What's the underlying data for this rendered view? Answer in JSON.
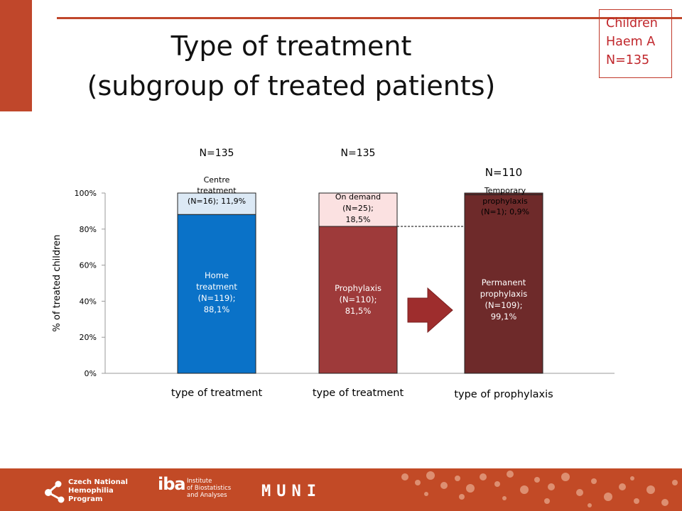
{
  "slide": {
    "title_line1": "Type of treatment",
    "title_line2": "(subgroup of treated patients)",
    "badge": {
      "line1": "Children",
      "line2": "Haem A",
      "line3": "N=135"
    }
  },
  "colors": {
    "accent": "#c0472b",
    "home": "#0a72c8",
    "home_light": "#dce9f5",
    "prophylaxis": "#9e3a3a",
    "on_demand": "#fbe1e1",
    "permanent": "#6e2a2a",
    "arrow": "#9e2d2d"
  },
  "chart_data": {
    "type": "bar",
    "stacked": true,
    "ylabel": "% of treated children",
    "ylim": [
      0,
      100
    ],
    "yticks": [
      "0%",
      "20%",
      "40%",
      "60%",
      "80%",
      "100%"
    ],
    "bars": [
      {
        "category": "type of treatment",
        "n_label": "N=135",
        "segments": [
          {
            "label": "Home treatment (N=119); 88,1%",
            "value": 88.1,
            "color": "#0a72c8"
          },
          {
            "label": "Centre treatment (N=16); 11,9%",
            "value": 11.9,
            "color": "#dce9f5"
          }
        ]
      },
      {
        "category": "type of treatment",
        "n_label": "N=135",
        "segments": [
          {
            "label": "Prophylaxis (N=110); 81,5%",
            "value": 81.5,
            "color": "#9e3a3a"
          },
          {
            "label": "On demand (N=25); 18,5%",
            "value": 18.5,
            "color": "#fbe1e1"
          }
        ]
      },
      {
        "category": "type of prophylaxis",
        "n_label": "N=110",
        "segments": [
          {
            "label": "Permanent prophylaxis (N=109); 99,1%",
            "value": 99.1,
            "color": "#6e2a2a"
          },
          {
            "label": "Temporary prophylaxis (N=1); 0,9%",
            "value": 0.9,
            "color": "#6e2a2a"
          }
        ]
      }
    ],
    "segment_text": [
      [
        "Home",
        "treatment",
        "(N=119);",
        "88,1%"
      ],
      [
        "Centre",
        "treatment",
        "(N=16); 11,9%"
      ],
      [
        "Prophylaxis",
        "(N=110);",
        "81,5%"
      ],
      [
        "On demand",
        "(N=25);",
        "18,5%"
      ],
      [
        "Permanent",
        "prophylaxis",
        "(N=109);",
        "99,1%"
      ],
      [
        "Temporary",
        "prophylaxis",
        "(N=1); 0,9%"
      ]
    ]
  },
  "footer": {
    "cnhp": [
      "Czech National",
      "Hemophilia",
      "Program"
    ],
    "iba_mark": "iba",
    "iba": [
      "Institute",
      "of Biostatistics",
      "and Analyses"
    ],
    "muni": "MUNI"
  }
}
